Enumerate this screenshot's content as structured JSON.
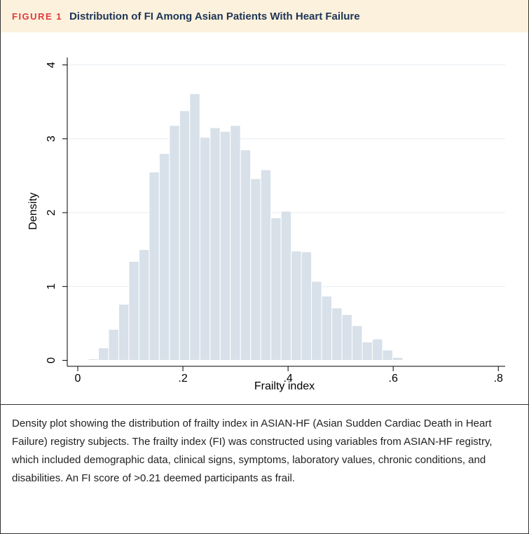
{
  "figure_label": "FIGURE 1",
  "caption": "Density plot showing the distribution of frailty index in ASIAN-HF (Asian Sudden Cardiac Death in Heart Failure) registry subjects. The frailty index (FI) was constructed using variables from ASIAN-HF registry, which included demographic data, clinical signs, symptoms, laboratory values, chronic conditions, and disabilities. An FI score of >0.21 deemed participants as frail.",
  "chart_data": {
    "type": "histogram",
    "title": "Distribution of FI Among Asian Patients With Heart Failure",
    "x_label": "Frailty index",
    "y_label": "Density",
    "bins": [
      0.02,
      0.0393,
      0.0586,
      0.0779,
      0.0972,
      0.1165,
      0.1358,
      0.1551,
      0.1744,
      0.1937,
      0.213,
      0.2323,
      0.2516,
      0.2709,
      0.2902,
      0.3095,
      0.3288,
      0.3481,
      0.3674,
      0.3867,
      0.406,
      0.4253,
      0.4446,
      0.4639,
      0.4832,
      0.5025,
      0.5218,
      0.5411,
      0.5604,
      0.5797,
      0.599,
      0.6183,
      0.6376,
      0.6569,
      0.6762
    ],
    "values": [
      0.02,
      0.17,
      0.42,
      0.76,
      1.34,
      1.5,
      2.55,
      2.8,
      3.18,
      3.38,
      3.61,
      3.02,
      3.15,
      3.1,
      3.18,
      2.85,
      2.46,
      2.58,
      1.93,
      2.02,
      1.48,
      1.47,
      1.07,
      0.87,
      0.71,
      0.62,
      0.47,
      0.25,
      0.29,
      0.14,
      0.04,
      0.01,
      0.01,
      0.01
    ],
    "color": "#d8e1e9",
    "xlim": [
      -0.02,
      0.813
    ],
    "ylim": [
      -0.08,
      4.1
    ],
    "xticks": [
      0,
      {
        "value": 0.2,
        "label": ".2"
      },
      {
        "value": 0.4,
        "label": ".4"
      },
      {
        "value": 0.6,
        "label": ".6"
      },
      {
        "value": 0.8,
        "label": ".8"
      }
    ],
    "yticks": [
      0,
      1,
      2,
      3,
      4
    ],
    "grid": true
  }
}
